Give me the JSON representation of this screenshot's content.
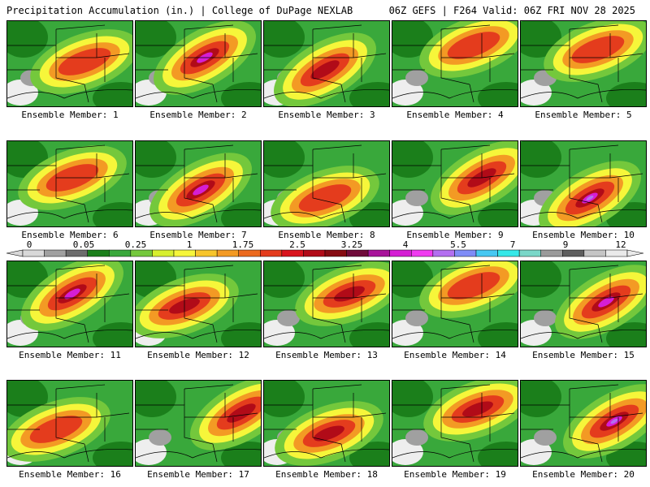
{
  "header": {
    "left": "Precipitation Accumulation (in.) | College of DuPage NEXLAB",
    "right": "06Z GEFS | F264 Valid: 06Z FRI NOV 28 2025"
  },
  "legend": {
    "labels": [
      "0",
      "0.05",
      "0.25",
      "1",
      "1.75",
      "2.5",
      "3.25",
      "4",
      "5.5",
      "7",
      "9",
      "12"
    ],
    "colors": [
      "#d8d8d8",
      "#a0a0a0",
      "#6c6c6c",
      "#1b7f1b",
      "#39a83b",
      "#74c83c",
      "#d7ef2f",
      "#f6f63a",
      "#f7c52b",
      "#f39a24",
      "#ec6a1e",
      "#e43c1d",
      "#d9141d",
      "#b10b18",
      "#860b12",
      "#6f0a3a",
      "#a8139a",
      "#d51fd4",
      "#f03cf0",
      "#b36ff0",
      "#7f8cf7",
      "#46c8f2",
      "#35e8e8",
      "#7ad7c8",
      "#9a9a9a",
      "#5e5e5e",
      "#c5c5c5",
      "#eaeaea"
    ]
  },
  "panel_colors": {
    "green_dark": "#1b7f1b",
    "green": "#39a83b",
    "green_light": "#74c83c",
    "yellow": "#f6f63a",
    "orange": "#f39a24",
    "red": "#e43c1d",
    "dark_red": "#b10b18",
    "magenta": "#d51fd4",
    "purple": "#b36ff0",
    "gray": "#a0a0a0",
    "white": "#eeeeee",
    "border": "#000000"
  },
  "members": [
    {
      "label": "Ensemble Member: 1"
    },
    {
      "label": "Ensemble Member: 2"
    },
    {
      "label": "Ensemble Member: 3"
    },
    {
      "label": "Ensemble Member: 4"
    },
    {
      "label": "Ensemble Member: 5"
    },
    {
      "label": "Ensemble Member: 6"
    },
    {
      "label": "Ensemble Member: 7"
    },
    {
      "label": "Ensemble Member: 8"
    },
    {
      "label": "Ensemble Member: 9"
    },
    {
      "label": "Ensemble Member: 10"
    },
    {
      "label": "Ensemble Member: 11"
    },
    {
      "label": "Ensemble Member: 12"
    },
    {
      "label": "Ensemble Member: 13"
    },
    {
      "label": "Ensemble Member: 14"
    },
    {
      "label": "Ensemble Member: 15"
    },
    {
      "label": "Ensemble Member: 16"
    },
    {
      "label": "Ensemble Member: 17"
    },
    {
      "label": "Ensemble Member: 18"
    },
    {
      "label": "Ensemble Member: 19"
    },
    {
      "label": "Ensemble Member: 20"
    }
  ]
}
